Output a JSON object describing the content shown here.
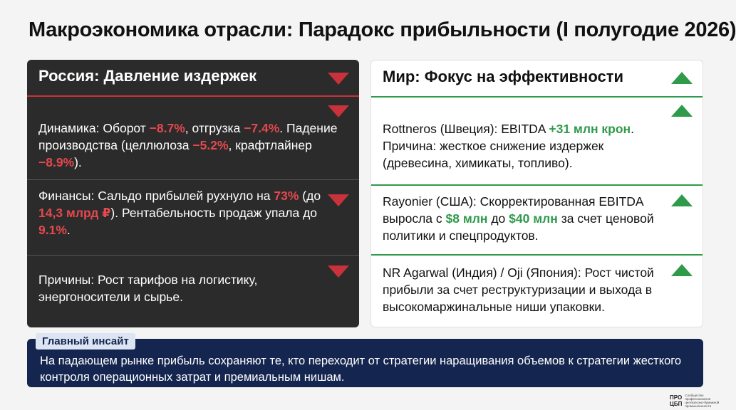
{
  "title": "Макроэкономика отрасли: Парадокс прибыльности (I полугодие 2026)",
  "left": {
    "header": "Россия: Давление издержек",
    "s1": {
      "p1": "Динамика: Оборот ",
      "v1": "−8.7%",
      "p2": ", отгрузка ",
      "v2": "−7.4%",
      "p3": ". Падение производства (целлюлоза ",
      "v3": "−5.2%",
      "p4": ", крафтлайнер ",
      "v4": "−8.9%",
      "p5": ")."
    },
    "s2": {
      "p1": "Финансы: Сальдо прибылей рухнуло на ",
      "v1": "73%",
      "p2": " (до ",
      "v2": "14,3 млрд ₽",
      "p3": "). Рентабельность продаж упала до ",
      "v3": "9.1%",
      "p4": "."
    },
    "s3": {
      "text": "Причины: Рост тарифов на логистику, энергоносители и сырье."
    }
  },
  "right": {
    "header": "Мир: Фокус на эффективности",
    "s1": {
      "p1": "Rottneros (Швеция): EBITDA ",
      "v1": "+31 млн крон",
      "p2": ". Причина: жесткое снижение издержек (древесина, химикаты, топливо)."
    },
    "s2": {
      "p1": "Rayonier (США): Скорректированная EBITDA выросла с ",
      "v1": "$8 млн",
      "p2": " до ",
      "v2": "$40 млн",
      "p3": " за счет ценовой политики и спецпродуктов."
    },
    "s3": {
      "text": "NR Agarwal (Индия) / Oji (Япония): Рост чистой прибыли за счет реструктуризации и выхода в высокомаржинальные ниши упаковки."
    }
  },
  "insight": {
    "label": "Главный инсайт",
    "text": "На падающем рынке прибыль сохраняют те, кто переходит от стратегии наращивания объемов к стратегии жесткого контроля операционных затрат и премиальным нишам."
  },
  "logo": {
    "mark_top": "ПРО",
    "mark_bottom": "ЦБП",
    "text": "Сообщество профессионалов целлюлозно-бумажной промышленности"
  },
  "colors": {
    "negative": "#e5484d",
    "positive": "#2e9a4a",
    "insight_bg": "#14254f",
    "dark_panel": "#2b2b2b"
  },
  "icons": {
    "left": "triangle-down-icon",
    "right": "triangle-up-icon"
  }
}
